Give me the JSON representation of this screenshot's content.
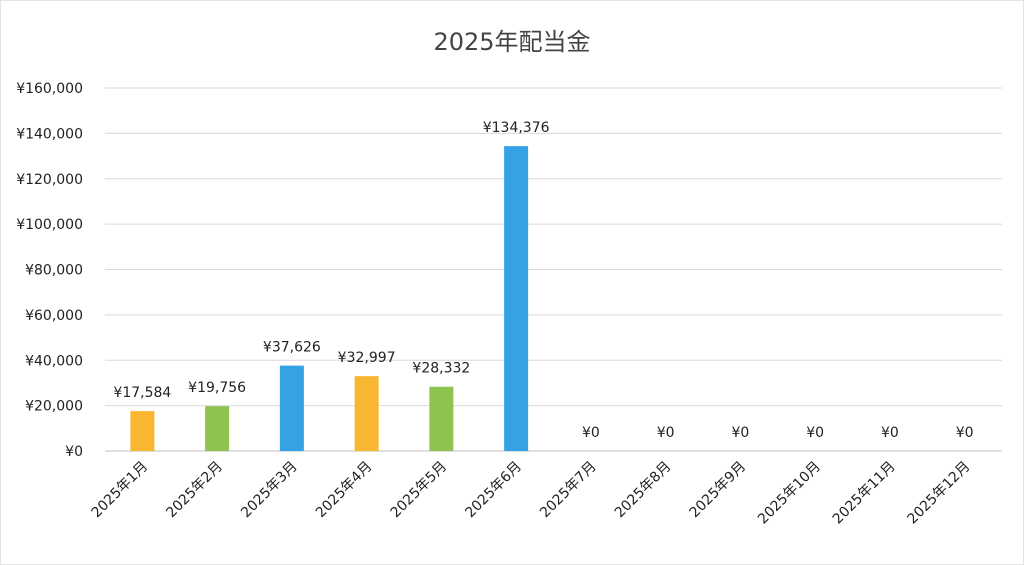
{
  "chart_data": {
    "type": "bar",
    "title": "2025年配当金",
    "xlabel": "",
    "ylabel": "",
    "categories": [
      "2025年1月",
      "2025年2月",
      "2025年3月",
      "2025年4月",
      "2025年5月",
      "2025年6月",
      "2025年7月",
      "2025年8月",
      "2025年9月",
      "2025年10月",
      "2025年11月",
      "2025年12月"
    ],
    "values": [
      17584,
      19756,
      37626,
      32997,
      28332,
      134376,
      0,
      0,
      0,
      0,
      0,
      0
    ],
    "value_labels": [
      "¥17,584",
      "¥19,756",
      "¥37,626",
      "¥32,997",
      "¥28,332",
      "¥134,376",
      "¥0",
      "¥0",
      "¥0",
      "¥0",
      "¥0",
      "¥0"
    ],
    "bar_colors": [
      "#f9b731",
      "#8dc34f",
      "#36a2e6",
      "#f9b731",
      "#8dc34f",
      "#36a2e6",
      "#f9b731",
      "#8dc34f",
      "#36a2e6",
      "#f9b731",
      "#8dc34f",
      "#36a2e6"
    ],
    "ylim": [
      0,
      160000
    ],
    "yticks": [
      0,
      20000,
      40000,
      60000,
      80000,
      100000,
      120000,
      140000,
      160000
    ],
    "ytick_labels": [
      "¥0",
      "¥20,000",
      "¥40,000",
      "¥60,000",
      "¥80,000",
      "¥100,000",
      "¥120,000",
      "¥140,000",
      "¥160,000"
    ],
    "grid": true,
    "legend": "none"
  }
}
